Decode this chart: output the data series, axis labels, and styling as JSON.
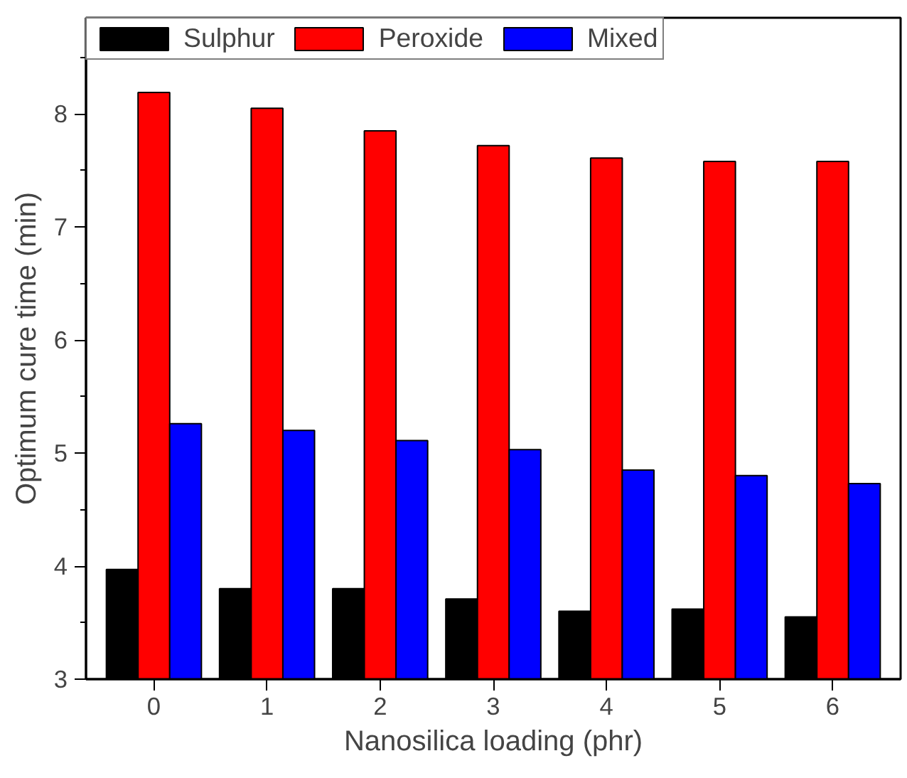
{
  "chart_data": {
    "type": "bar",
    "xlabel": "Nanosilica loading (phr)",
    "ylabel": "Optimum cure time (min)",
    "categories": [
      "0",
      "1",
      "2",
      "3",
      "4",
      "5",
      "6"
    ],
    "series": [
      {
        "name": "Sulphur",
        "color": "#000000",
        "values": [
          3.97,
          3.8,
          3.8,
          3.71,
          3.6,
          3.62,
          3.55
        ]
      },
      {
        "name": "Peroxide",
        "color": "#ff0000",
        "values": [
          8.19,
          8.05,
          7.85,
          7.72,
          7.61,
          7.58,
          7.58
        ]
      },
      {
        "name": "Mixed",
        "color": "#0000ff",
        "values": [
          5.26,
          5.2,
          5.11,
          5.03,
          4.85,
          4.8,
          4.73
        ]
      }
    ],
    "ylim": [
      3,
      8.85
    ],
    "yticks": [
      3,
      4,
      5,
      6,
      7,
      8
    ],
    "grid": false,
    "legend": "top left"
  }
}
